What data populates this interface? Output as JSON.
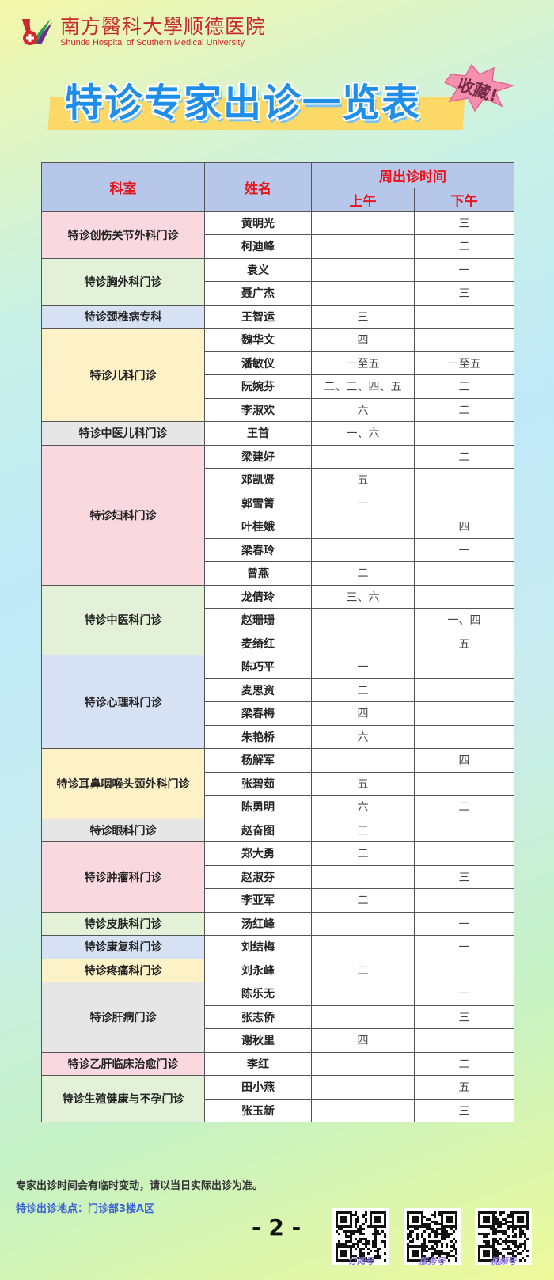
{
  "header": {
    "logo_cn": "南方醫科大學顺德医院",
    "logo_en": "Shunde Hospital of Southern Medical University",
    "title": "特诊专家出诊一览表",
    "badge": "收藏!"
  },
  "colors": {
    "pink": "#f9d9df",
    "green": "#e3f1d8",
    "blue": "#d7e1f4",
    "yellow": "#fdf1c8",
    "gray": "#e6e6e6",
    "header": "#b6c7e9",
    "title": "#1e8ee8"
  },
  "table": {
    "headers": {
      "dept": "科室",
      "name": "姓名",
      "schedule": "周出诊时间",
      "am": "上午",
      "pm": "下午"
    },
    "departments": [
      {
        "name": "特诊创伤关节外科门诊",
        "color": "pink",
        "doctors": [
          [
            "黄明光",
            "",
            "三"
          ],
          [
            "柯迪峰",
            "",
            "二"
          ]
        ]
      },
      {
        "name": "特诊胸外科门诊",
        "color": "green",
        "doctors": [
          [
            "袁义",
            "",
            "一"
          ],
          [
            "聂广杰",
            "",
            "三"
          ]
        ]
      },
      {
        "name": "特诊颈椎病专科",
        "color": "blue",
        "doctors": [
          [
            "王智运",
            "三",
            ""
          ]
        ]
      },
      {
        "name": "特诊儿科门诊",
        "color": "yellow",
        "doctors": [
          [
            "魏华文",
            "四",
            ""
          ],
          [
            "潘敏仪",
            "一至五",
            "一至五"
          ],
          [
            "阮婉芬",
            "二、三、四、五",
            "三"
          ],
          [
            "李淑欢",
            "六",
            "二"
          ]
        ]
      },
      {
        "name": "特诊中医儿科门诊",
        "color": "gray",
        "doctors": [
          [
            "王首",
            "一、六",
            ""
          ]
        ]
      },
      {
        "name": "特诊妇科门诊",
        "color": "pink",
        "doctors": [
          [
            "梁建好",
            "",
            "二"
          ],
          [
            "邓凯贤",
            "五",
            ""
          ],
          [
            "郭雪箐",
            "一",
            ""
          ],
          [
            "叶桂娥",
            "",
            "四"
          ],
          [
            "梁春玲",
            "",
            "一"
          ],
          [
            "曾燕",
            "二",
            ""
          ]
        ]
      },
      {
        "name": "特诊中医科门诊",
        "color": "green",
        "doctors": [
          [
            "龙倩玲",
            "三、六",
            ""
          ],
          [
            "赵珊珊",
            "",
            "一、四"
          ],
          [
            "麦绮红",
            "",
            "五"
          ]
        ]
      },
      {
        "name": "特诊心理科门诊",
        "color": "blue",
        "doctors": [
          [
            "陈巧平",
            "一",
            ""
          ],
          [
            "麦思资",
            "二",
            ""
          ],
          [
            "梁春梅",
            "四",
            ""
          ],
          [
            "朱艳桥",
            "六",
            ""
          ]
        ]
      },
      {
        "name": "特诊耳鼻咽喉头颈外科门诊",
        "color": "yellow",
        "doctors": [
          [
            "杨解军",
            "",
            "四"
          ],
          [
            "张碧茹",
            "五",
            ""
          ],
          [
            "陈勇明",
            "六",
            "二"
          ]
        ]
      },
      {
        "name": "特诊眼科门诊",
        "color": "gray",
        "doctors": [
          [
            "赵奋图",
            "三",
            ""
          ]
        ]
      },
      {
        "name": "特诊肿瘤科门诊",
        "color": "pink",
        "doctors": [
          [
            "郑大勇",
            "二",
            ""
          ],
          [
            "赵淑芬",
            "",
            "三"
          ],
          [
            "李亚军",
            "二",
            ""
          ]
        ]
      },
      {
        "name": "特诊皮肤科门诊",
        "color": "green",
        "doctors": [
          [
            "汤红峰",
            "",
            "一"
          ]
        ]
      },
      {
        "name": "特诊康复科门诊",
        "color": "blue",
        "doctors": [
          [
            "刘结梅",
            "",
            "一"
          ]
        ]
      },
      {
        "name": "特诊疼痛科门诊",
        "color": "yellow",
        "doctors": [
          [
            "刘永峰",
            "二",
            ""
          ]
        ]
      },
      {
        "name": "特诊肝病门诊",
        "color": "gray",
        "doctors": [
          [
            "陈乐无",
            "",
            "一"
          ],
          [
            "张志侨",
            "",
            "三"
          ],
          [
            "谢秋里",
            "四",
            ""
          ]
        ]
      },
      {
        "name": "特诊乙肝临床治愈门诊",
        "color": "pink",
        "doctors": [
          [
            "李红",
            "",
            "二"
          ]
        ]
      },
      {
        "name": "特诊生殖健康与不孕门诊",
        "color": "green",
        "doctors": [
          [
            "田小燕",
            "",
            "五"
          ],
          [
            "张玉新",
            "",
            "三"
          ]
        ]
      }
    ]
  },
  "footer": {
    "notice": "专家出诊时间会有临时变动，请以当日实际出诊为准。",
    "location": "特诊出诊地点：门诊部3楼A区",
    "page": "- 2 -",
    "qrcodes": [
      {
        "label": "订阅号"
      },
      {
        "label": "服务号"
      },
      {
        "label": "视频号"
      }
    ]
  }
}
